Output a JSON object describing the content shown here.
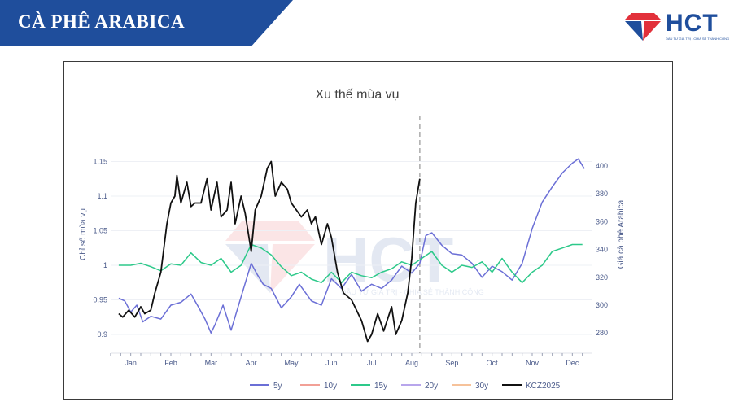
{
  "header": {
    "title": "CÀ PHÊ ARABICA"
  },
  "logo": {
    "text": "HCT",
    "tagline": "ĐẦU TƯ GIÁ TRỊ - CHIA SẺ THÀNH CÔNG",
    "icon": "diamond-logo-icon"
  },
  "watermark": {
    "text": "HCT",
    "tagline": "ĐẦU TƯ GIÁ TRỊ - CHIA SẺ THÀNH CÔNG"
  },
  "colors": {
    "brand": "#1f4e9c",
    "accent": "#e2313b",
    "5y": "#6b6fd6",
    "10y": "#f2a096",
    "15y": "#2dc98a",
    "20y": "#b8a6ec",
    "30y": "#f6c29a",
    "KCZ2025": "#111111"
  },
  "chart_data": {
    "type": "line",
    "title": "Xu thế mùa vụ",
    "ylabel": "Chỉ số mùa vụ",
    "y2label": "Giá cà phê Arabica",
    "ylim": [
      0.88,
      1.2
    ],
    "y2lim": [
      269,
      428
    ],
    "xlim": [
      -0.5,
      11.5
    ],
    "x_ticks": [
      "Jan",
      "Feb",
      "Mar",
      "Apr",
      "May",
      "Jun",
      "Jul",
      "Aug",
      "Sep",
      "Oct",
      "Nov",
      "Dec"
    ],
    "y_ticks": [
      "0.9",
      "0.95",
      "1",
      "1.05",
      "1.1",
      "1.15"
    ],
    "y2_ticks": [
      "280",
      "300",
      "320",
      "340",
      "360",
      "380",
      "400"
    ],
    "y_tick_values": [
      0.9,
      0.95,
      1,
      1.05,
      1.1,
      1.15
    ],
    "y2_tick_values": [
      280,
      300,
      320,
      340,
      360,
      380,
      400
    ],
    "vline_x": 7.2,
    "legend_position": "bottom",
    "legend": [
      "5y",
      "10y",
      "15y",
      "20y",
      "30y",
      "KCZ2025"
    ],
    "series": [
      {
        "name": "5y",
        "axis": "y2",
        "x": [
          -0.3,
          -0.15,
          0,
          0.15,
          0.3,
          0.5,
          0.75,
          1,
          1.25,
          1.5,
          1.7,
          1.85,
          2,
          2.1,
          2.3,
          2.5,
          2.75,
          3,
          3.15,
          3.3,
          3.5,
          3.75,
          4,
          4.2,
          4.5,
          4.75,
          5,
          5.25,
          5.5,
          5.75,
          6,
          6.25,
          6.5,
          6.75,
          7,
          7.2,
          7.35,
          7.5,
          7.75,
          8,
          8.25,
          8.5,
          8.75,
          9,
          9.25,
          9.5,
          9.75,
          10,
          10.25,
          10.5,
          10.75,
          11,
          11.15,
          11.3
        ],
        "y": [
          305,
          303,
          295,
          300,
          288,
          292,
          290,
          300,
          302,
          308,
          298,
          290,
          280,
          286,
          300,
          282,
          306,
          330,
          322,
          315,
          312,
          298,
          306,
          315,
          303,
          300,
          319,
          312,
          322,
          310,
          315,
          312,
          318,
          328,
          323,
          330,
          350,
          352,
          343,
          337,
          336,
          330,
          320,
          328,
          324,
          318,
          330,
          355,
          374,
          385,
          395,
          402,
          405,
          398
        ]
      },
      {
        "name": "15y",
        "axis": "y1",
        "x": [
          -0.3,
          0,
          0.25,
          0.5,
          0.75,
          1,
          1.25,
          1.5,
          1.75,
          2,
          2.25,
          2.5,
          2.75,
          3,
          3.25,
          3.5,
          3.75,
          4,
          4.25,
          4.5,
          4.75,
          5,
          5.25,
          5.5,
          5.75,
          6,
          6.25,
          6.5,
          6.75,
          7,
          7.25,
          7.5,
          7.75,
          8,
          8.25,
          8.5,
          8.75,
          9,
          9.25,
          9.5,
          9.75,
          10,
          10.25,
          10.5,
          10.75,
          11,
          11.25
        ],
        "y": [
          1.0,
          1.0,
          1.003,
          0.998,
          0.992,
          1.002,
          1.0,
          1.018,
          1.004,
          1.0,
          1.01,
          0.99,
          1.0,
          1.03,
          1.025,
          1.015,
          0.998,
          0.985,
          0.99,
          0.98,
          0.975,
          0.99,
          0.975,
          0.99,
          0.985,
          0.982,
          0.99,
          0.995,
          1.005,
          1.0,
          1.01,
          1.02,
          1.0,
          0.99,
          1.0,
          0.997,
          1.005,
          0.99,
          1.01,
          0.99,
          0.975,
          0.99,
          1.0,
          1.02,
          1.025,
          1.03,
          1.03
        ]
      },
      {
        "name": "KCZ2025",
        "axis": "y1",
        "x": [
          -0.3,
          -0.2,
          -0.05,
          0.1,
          0.25,
          0.35,
          0.5,
          0.6,
          0.75,
          0.9,
          1,
          1.1,
          1.15,
          1.25,
          1.4,
          1.5,
          1.6,
          1.75,
          1.9,
          2,
          2.15,
          2.25,
          2.4,
          2.5,
          2.6,
          2.75,
          2.85,
          3,
          3.1,
          3.25,
          3.4,
          3.5,
          3.6,
          3.75,
          3.9,
          4,
          4.25,
          4.4,
          4.5,
          4.6,
          4.75,
          4.9,
          5,
          5.15,
          5.3,
          5.5,
          5.75,
          5.9,
          6,
          6.15,
          6.3,
          6.5,
          6.6,
          6.75,
          6.9,
          7,
          7.1,
          7.2
        ],
        "y": [
          0.93,
          0.925,
          0.935,
          0.925,
          0.94,
          0.93,
          0.935,
          0.96,
          0.99,
          1.06,
          1.09,
          1.1,
          1.13,
          1.09,
          1.12,
          1.085,
          1.09,
          1.09,
          1.125,
          1.08,
          1.12,
          1.07,
          1.08,
          1.12,
          1.06,
          1.1,
          1.075,
          1.02,
          1.08,
          1.1,
          1.14,
          1.15,
          1.1,
          1.12,
          1.11,
          1.09,
          1.07,
          1.08,
          1.06,
          1.07,
          1.03,
          1.06,
          1.04,
          0.99,
          0.96,
          0.95,
          0.92,
          0.89,
          0.9,
          0.93,
          0.905,
          0.94,
          0.9,
          0.92,
          0.96,
          1.01,
          1.09,
          1.125
        ]
      }
    ]
  }
}
